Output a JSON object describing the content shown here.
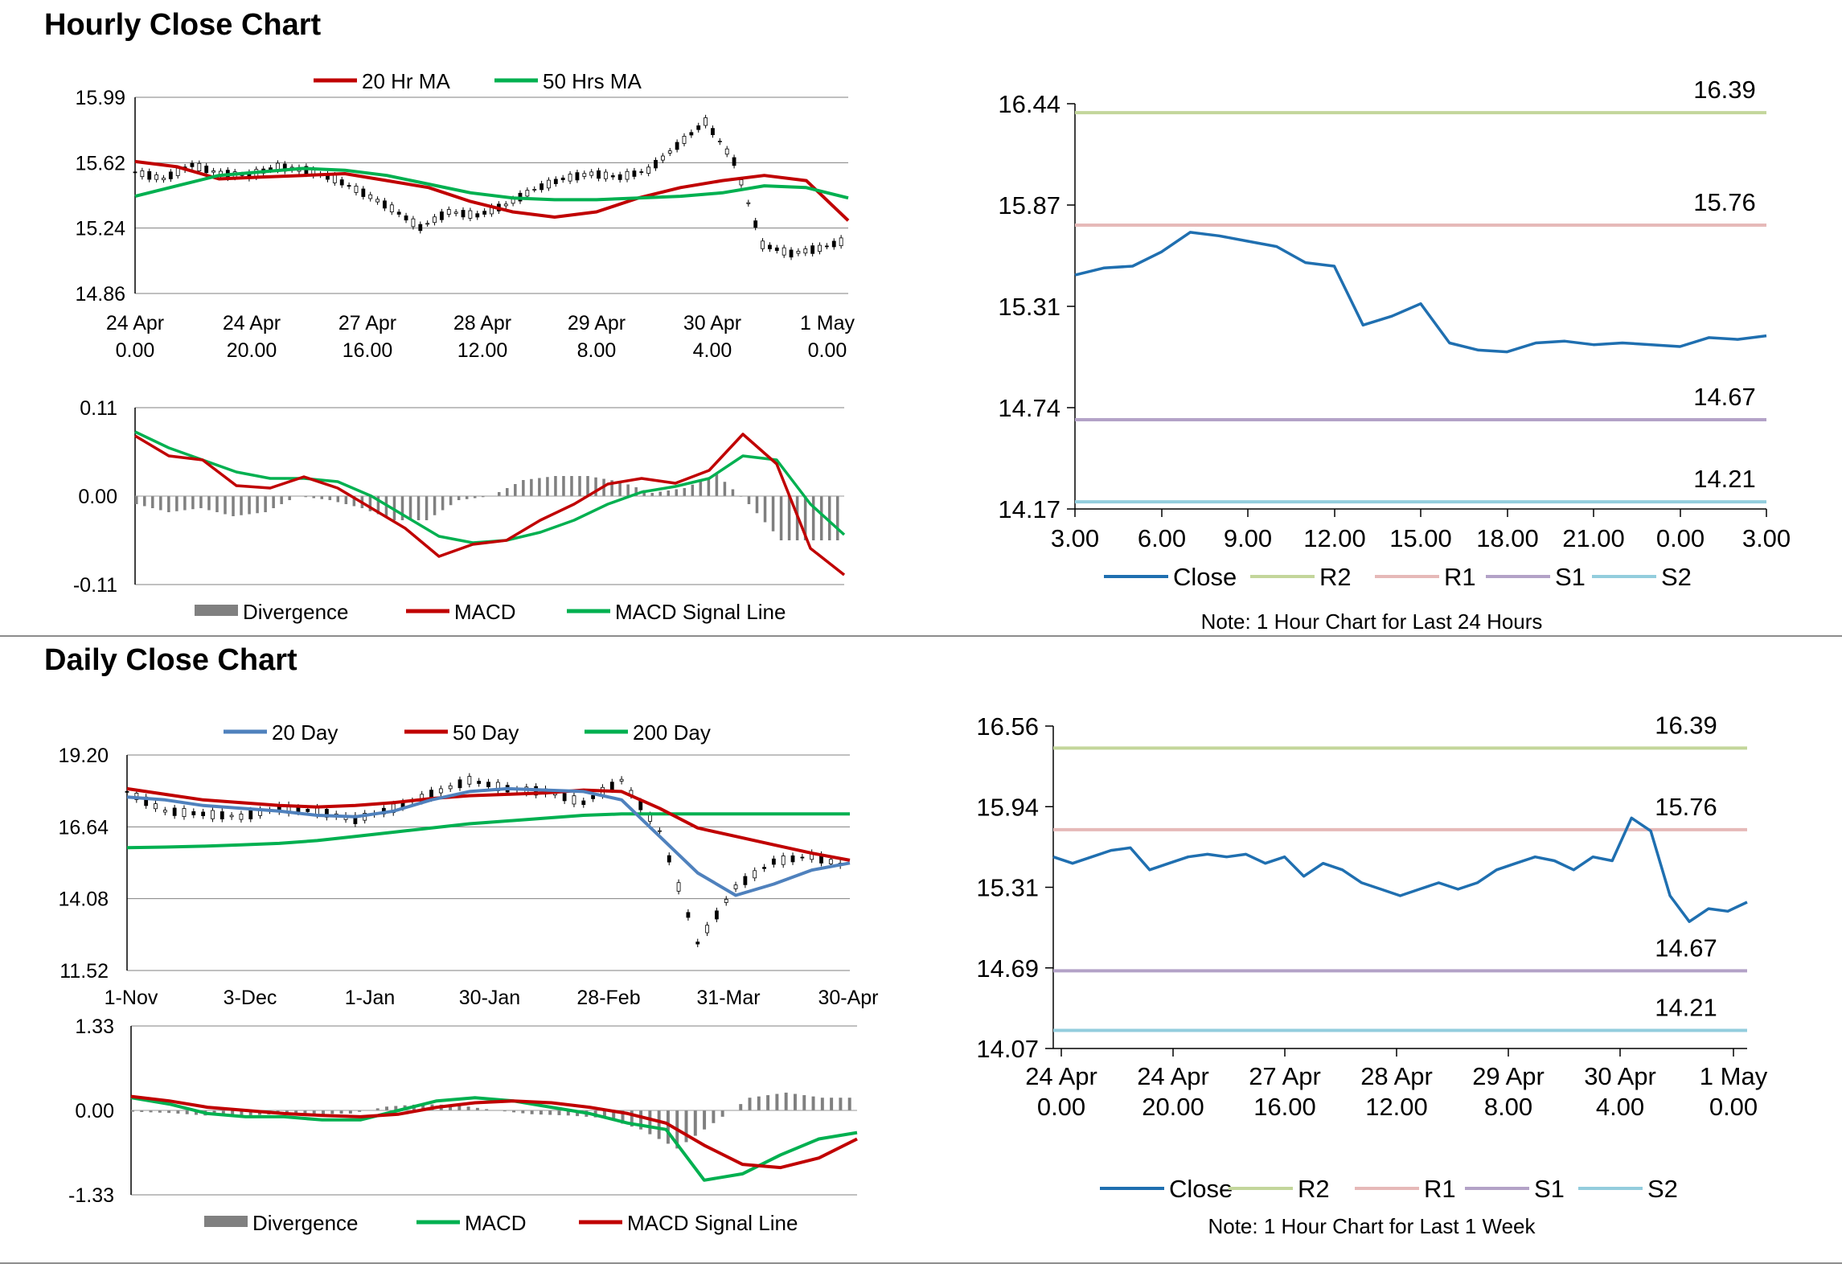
{
  "sections": {
    "hourly_title": "Hourly Close Chart",
    "daily_title": "Daily Close Chart"
  },
  "colors": {
    "red": "#c00000",
    "green": "#00b050",
    "blue_ma": "#4f81bd",
    "close_blue": "#1f6fb0",
    "r2": "#c3d69b",
    "r1": "#e6b9b8",
    "s1": "#b3a2c7",
    "s2": "#93cddd",
    "divergence": "#808080",
    "grid": "#808080"
  },
  "chart_data": [
    {
      "id": "hourly-candles",
      "type": "line",
      "title": "",
      "legend": [
        "20 Hr MA",
        "50 Hrs MA"
      ],
      "ylim": [
        14.86,
        15.99
      ],
      "yticks": [
        "15.99",
        "15.62",
        "15.24",
        "14.86"
      ],
      "xticks": [
        [
          "24 Apr",
          "0.00"
        ],
        [
          "24 Apr",
          "20.00"
        ],
        [
          "27 Apr",
          "16.00"
        ],
        [
          "28 Apr",
          "12.00"
        ],
        [
          "29 Apr",
          "8.00"
        ],
        [
          "30 Apr",
          "4.00"
        ],
        [
          "1 May",
          "0.00"
        ]
      ],
      "series": [
        {
          "name": "20 Hr MA",
          "color": "#c00000",
          "values": [
            15.62,
            15.59,
            15.52,
            15.53,
            15.54,
            15.55,
            15.51,
            15.47,
            15.39,
            15.33,
            15.3,
            15.33,
            15.41,
            15.47,
            15.51,
            15.54,
            15.51,
            15.28
          ]
        },
        {
          "name": "50 Hrs MA",
          "color": "#00b050",
          "values": [
            15.42,
            15.48,
            15.54,
            15.56,
            15.58,
            15.57,
            15.54,
            15.49,
            15.44,
            15.41,
            15.4,
            15.4,
            15.41,
            15.42,
            15.44,
            15.48,
            15.47,
            15.41
          ]
        },
        {
          "name": "Close",
          "values": [
            15.56,
            15.52,
            15.6,
            15.55,
            15.54,
            15.59,
            15.57,
            15.52,
            15.44,
            15.35,
            15.24,
            15.33,
            15.31,
            15.37,
            15.46,
            15.52,
            15.55,
            15.53,
            15.57,
            15.71,
            15.85,
            15.62,
            15.14,
            15.09,
            15.12,
            15.17
          ]
        }
      ]
    },
    {
      "id": "hourly-macd",
      "type": "line",
      "legend": [
        "Divergence",
        "MACD",
        "MACD Signal Line"
      ],
      "ylim": [
        -0.11,
        0.11
      ],
      "yticks": [
        "0.11",
        "0.00",
        "-0.11"
      ],
      "series": [
        {
          "name": "MACD",
          "color": "#c00000",
          "values": [
            0.075,
            0.05,
            0.045,
            0.013,
            0.01,
            0.024,
            0.01,
            -0.015,
            -0.04,
            -0.075,
            -0.06,
            -0.055,
            -0.03,
            -0.01,
            0.015,
            0.022,
            0.016,
            0.032,
            0.077,
            0.04,
            -0.065,
            -0.098
          ]
        },
        {
          "name": "MACD Signal Line",
          "color": "#00b050",
          "values": [
            0.08,
            0.06,
            0.045,
            0.03,
            0.022,
            0.022,
            0.018,
            0.0,
            -0.025,
            -0.05,
            -0.058,
            -0.055,
            -0.045,
            -0.03,
            -0.01,
            0.005,
            0.012,
            0.022,
            0.05,
            0.045,
            -0.01,
            -0.048
          ]
        },
        {
          "name": "Divergence",
          "color": "#808080",
          "values": [
            -0.01,
            -0.02,
            -0.015,
            -0.025,
            -0.02,
            0.0,
            -0.005,
            -0.015,
            -0.03,
            -0.03,
            -0.005,
            0.0,
            0.02,
            0.025,
            0.025,
            0.018,
            0.004,
            0.01,
            0.027,
            -0.01,
            -0.055,
            -0.055
          ]
        }
      ]
    },
    {
      "id": "hourly-close-24h",
      "type": "line",
      "title": "",
      "note": "Note: 1 Hour Chart for Last 24 Hours",
      "ylim": [
        14.17,
        16.44
      ],
      "yticks": [
        "16.44",
        "15.87",
        "15.31",
        "14.74",
        "14.17"
      ],
      "xticks": [
        "3.00",
        "6.00",
        "9.00",
        "12.00",
        "15.00",
        "18.00",
        "21.00",
        "0.00",
        "3.00"
      ],
      "legend": [
        "Close",
        "R2",
        "R1",
        "S1",
        "S2"
      ],
      "x": [
        0,
        1,
        2,
        3,
        4,
        5,
        6,
        7,
        8,
        9,
        10,
        11,
        12,
        13,
        14,
        15,
        16,
        17,
        18,
        19,
        20,
        21,
        22,
        23,
        24
      ],
      "values": [
        15.48,
        15.52,
        15.53,
        15.61,
        15.72,
        15.7,
        15.67,
        15.64,
        15.55,
        15.53,
        15.2,
        15.25,
        15.32,
        15.1,
        15.06,
        15.05,
        15.1,
        15.11,
        15.09,
        15.1,
        15.09,
        15.08,
        15.13,
        15.12,
        15.14
      ],
      "levels": [
        {
          "name": "R2",
          "value": 16.39,
          "label": "16.39",
          "color": "#c3d69b"
        },
        {
          "name": "R1",
          "value": 15.76,
          "label": "15.76",
          "color": "#e6b9b8"
        },
        {
          "name": "S1",
          "value": 14.67,
          "label": "14.67",
          "color": "#b3a2c7"
        },
        {
          "name": "S2",
          "value": 14.21,
          "label": "14.21",
          "color": "#93cddd"
        }
      ]
    },
    {
      "id": "daily-candles",
      "type": "line",
      "legend": [
        "20 Day",
        "50 Day",
        "200 Day"
      ],
      "ylim": [
        11.52,
        19.2
      ],
      "yticks": [
        "19.20",
        "16.64",
        "14.08",
        "11.52"
      ],
      "xticks": [
        "1-Nov",
        "3-Dec",
        "1-Jan",
        "30-Jan",
        "28-Feb",
        "31-Mar",
        "30-Apr"
      ],
      "series": [
        {
          "name": "20 Day",
          "color": "#4f81bd",
          "values": [
            17.7,
            17.6,
            17.4,
            17.3,
            17.2,
            17.05,
            17.0,
            17.2,
            17.6,
            17.9,
            18.0,
            17.95,
            17.9,
            17.6,
            16.3,
            15.0,
            14.2,
            14.6,
            15.1,
            15.35
          ]
        },
        {
          "name": "50 Day",
          "color": "#c00000",
          "values": [
            18.0,
            17.8,
            17.6,
            17.5,
            17.4,
            17.35,
            17.4,
            17.5,
            17.65,
            17.75,
            17.8,
            17.85,
            17.95,
            17.9,
            17.3,
            16.6,
            16.3,
            16.0,
            15.7,
            15.45
          ]
        },
        {
          "name": "200 Day",
          "color": "#00b050",
          "values": [
            15.9,
            15.92,
            15.95,
            16.0,
            16.05,
            16.15,
            16.3,
            16.45,
            16.6,
            16.75,
            16.85,
            16.95,
            17.05,
            17.1,
            17.1,
            17.1,
            17.1,
            17.1,
            17.1,
            17.1
          ]
        },
        {
          "name": "Close",
          "values": [
            17.9,
            17.2,
            17.1,
            17.0,
            17.3,
            17.2,
            16.9,
            17.3,
            17.8,
            18.3,
            18.0,
            17.9,
            17.5,
            18.3,
            16.5,
            12.5,
            14.5,
            15.4,
            15.6,
            15.2
          ]
        }
      ]
    },
    {
      "id": "daily-macd",
      "type": "line",
      "legend": [
        "Divergence",
        "MACD",
        "MACD Signal Line"
      ],
      "ylim": [
        -1.33,
        1.33
      ],
      "yticks": [
        "1.33",
        "0.00",
        "-1.33"
      ],
      "series": [
        {
          "name": "MACD",
          "color": "#00b050",
          "values": [
            0.2,
            0.1,
            -0.05,
            -0.1,
            -0.1,
            -0.15,
            -0.15,
            0.0,
            0.15,
            0.2,
            0.15,
            0.05,
            -0.05,
            -0.2,
            -0.3,
            -1.1,
            -1.0,
            -0.7,
            -0.45,
            -0.35
          ]
        },
        {
          "name": "MACD Signal Line",
          "color": "#c00000",
          "values": [
            0.22,
            0.15,
            0.05,
            0.0,
            -0.05,
            -0.08,
            -0.1,
            -0.06,
            0.05,
            0.12,
            0.15,
            0.12,
            0.05,
            -0.05,
            -0.2,
            -0.55,
            -0.85,
            -0.9,
            -0.75,
            -0.45
          ]
        },
        {
          "name": "Divergence",
          "color": "#808080",
          "values": [
            -0.02,
            -0.04,
            -0.08,
            -0.08,
            -0.06,
            -0.06,
            -0.05,
            0.06,
            0.1,
            0.08,
            0.0,
            -0.06,
            -0.08,
            -0.12,
            -0.3,
            -0.6,
            -0.2,
            0.2,
            0.28,
            0.2
          ]
        }
      ]
    },
    {
      "id": "hourly-close-1week",
      "type": "line",
      "note": "Note: 1 Hour Chart for Last 1 Week",
      "ylim": [
        14.07,
        16.56
      ],
      "yticks": [
        "16.56",
        "15.94",
        "15.31",
        "14.69",
        "14.07"
      ],
      "xticks": [
        [
          "24 Apr",
          "0.00"
        ],
        [
          "24 Apr",
          "20.00"
        ],
        [
          "27 Apr",
          "16.00"
        ],
        [
          "28 Apr",
          "12.00"
        ],
        [
          "29 Apr",
          "8.00"
        ],
        [
          "30 Apr",
          "4.00"
        ],
        [
          "1 May",
          "0.00"
        ]
      ],
      "legend": [
        "Close",
        "R2",
        "R1",
        "S1",
        "S2"
      ],
      "values": [
        15.55,
        15.5,
        15.55,
        15.6,
        15.62,
        15.45,
        15.5,
        15.55,
        15.57,
        15.55,
        15.57,
        15.5,
        15.55,
        15.4,
        15.5,
        15.45,
        15.35,
        15.3,
        15.25,
        15.3,
        15.35,
        15.3,
        15.35,
        15.45,
        15.5,
        15.55,
        15.52,
        15.45,
        15.55,
        15.52,
        15.85,
        15.75,
        15.25,
        15.05,
        15.15,
        15.13,
        15.2
      ],
      "levels": [
        {
          "name": "R2",
          "value": 16.39,
          "label": "16.39",
          "color": "#c3d69b"
        },
        {
          "name": "R1",
          "value": 15.76,
          "label": "15.76",
          "color": "#e6b9b8"
        },
        {
          "name": "S1",
          "value": 14.67,
          "label": "14.67",
          "color": "#b3a2c7"
        },
        {
          "name": "S2",
          "value": 14.21,
          "label": "14.21",
          "color": "#93cddd"
        }
      ]
    }
  ]
}
